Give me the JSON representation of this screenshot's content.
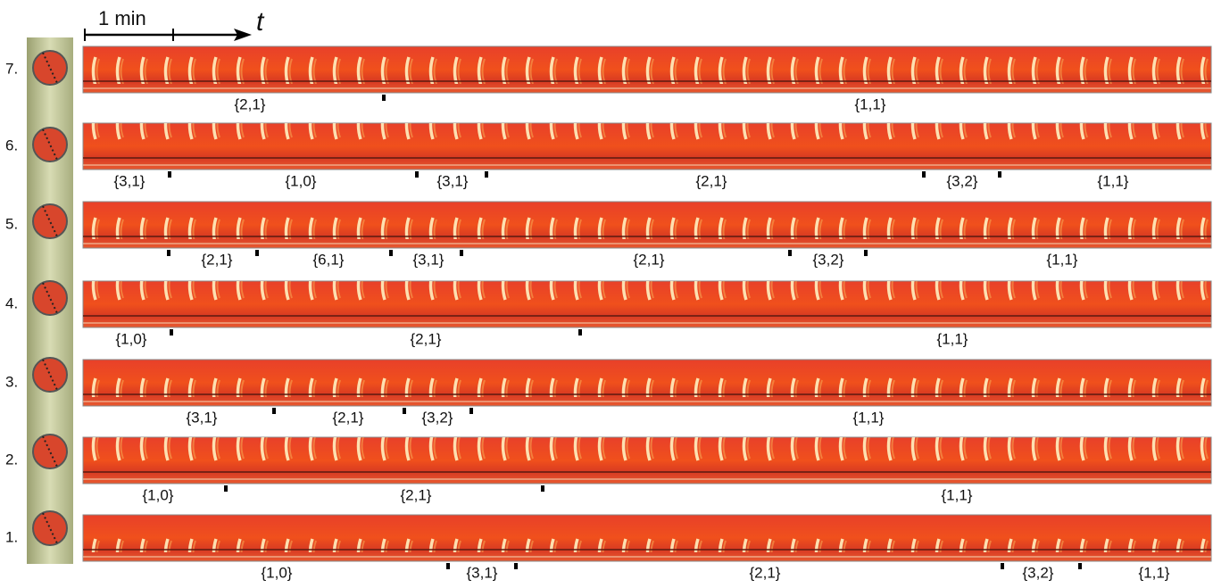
{
  "scale_bar": "1 min",
  "time_axis": "t",
  "rows": [
    {
      "label": "7.",
      "segments": [
        "{2,1}",
        "{1,1}"
      ]
    },
    {
      "label": "6.",
      "segments": [
        "{3,1}",
        "{1,0}",
        "{3,1}",
        "{2,1}",
        "{3,2}",
        "{1,1}"
      ]
    },
    {
      "label": "5.",
      "segments": [
        "{2,1}",
        "{6,1}",
        "{3,1}",
        "{2,1}",
        "{3,2}",
        "{1,1}"
      ]
    },
    {
      "label": "4.",
      "segments": [
        "{1,0}",
        "{2,1}",
        "{1,1}"
      ]
    },
    {
      "label": "3.",
      "segments": [
        "{3,1}",
        "{2,1}",
        "{3,2}",
        "{1,1}"
      ]
    },
    {
      "label": "2.",
      "segments": [
        "{1,0}",
        "{2,1}",
        "{1,1}"
      ]
    },
    {
      "label": "1.",
      "segments": [
        "{1,0}",
        "{3,1}",
        "{2,1}",
        "{3,2}",
        "{1,1}"
      ]
    }
  ]
}
